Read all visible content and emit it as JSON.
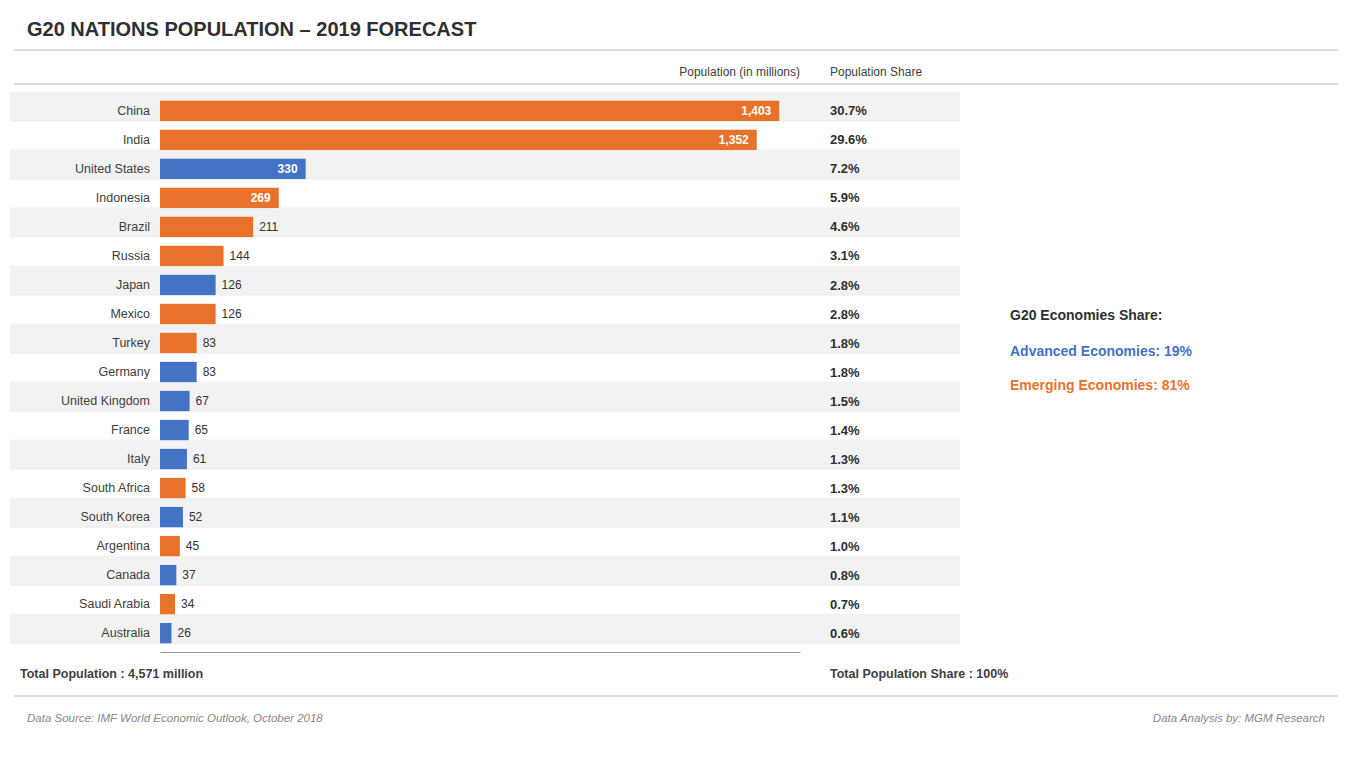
{
  "chart_data": {
    "type": "bar",
    "orientation": "horizontal",
    "title": "G20 NATIONS POPULATION – 2019 FORECAST",
    "categories": [
      "China",
      "India",
      "United States",
      "Indonesia",
      "Brazil",
      "Russia",
      "Japan",
      "Mexico",
      "Turkey",
      "Germany",
      "United Kingdom",
      "France",
      "Italy",
      "South Africa",
      "South Korea",
      "Argentina",
      "Canada",
      "Saudi Arabia",
      "Australia"
    ],
    "values": [
      1403,
      1352,
      330,
      269,
      211,
      144,
      126,
      126,
      83,
      83,
      67,
      65,
      61,
      58,
      52,
      45,
      37,
      34,
      26
    ],
    "value_labels": [
      "1,403",
      "1,352",
      "330",
      "269",
      "211",
      "144",
      "126",
      "126",
      "83",
      "83",
      "67",
      "65",
      "61",
      "58",
      "52",
      "45",
      "37",
      "34",
      "26"
    ],
    "colors": [
      "#E8722A",
      "#E8722A",
      "#4472C4",
      "#E8722A",
      "#E8722A",
      "#E8722A",
      "#4472C4",
      "#E8722A",
      "#E8722A",
      "#4472C4",
      "#4472C4",
      "#4472C4",
      "#4472C4",
      "#E8722A",
      "#4472C4",
      "#E8722A",
      "#4472C4",
      "#E8722A",
      "#4472C4"
    ],
    "share_labels": [
      "30.7%",
      "29.6%",
      "7.2%",
      "5.9%",
      "4.6%",
      "3.1%",
      "2.8%",
      "2.8%",
      "1.8%",
      "1.8%",
      "1.5%",
      "1.4%",
      "1.3%",
      "1.3%",
      "1.1%",
      "1.0%",
      "0.8%",
      "0.7%",
      "0.6%"
    ],
    "data_labels": true,
    "xlim": [
      0,
      1450
    ],
    "tick_labels": "y",
    "grid": false,
    "annotations": [
      "Population (in millions)",
      "Population Share",
      "Total Population : 4,571 million",
      "Total Population Share : 100%",
      "G20 Economies Share:",
      {
        "text": "Advanced Economies: 19%",
        "color": "#4472C4"
      },
      {
        "text": "Emerging Economies: 81%",
        "color": "#E8722A"
      },
      "Data Source: IMF World Economic Outlook, October 2018",
      "Data Analysis by: MGM Research"
    ]
  }
}
